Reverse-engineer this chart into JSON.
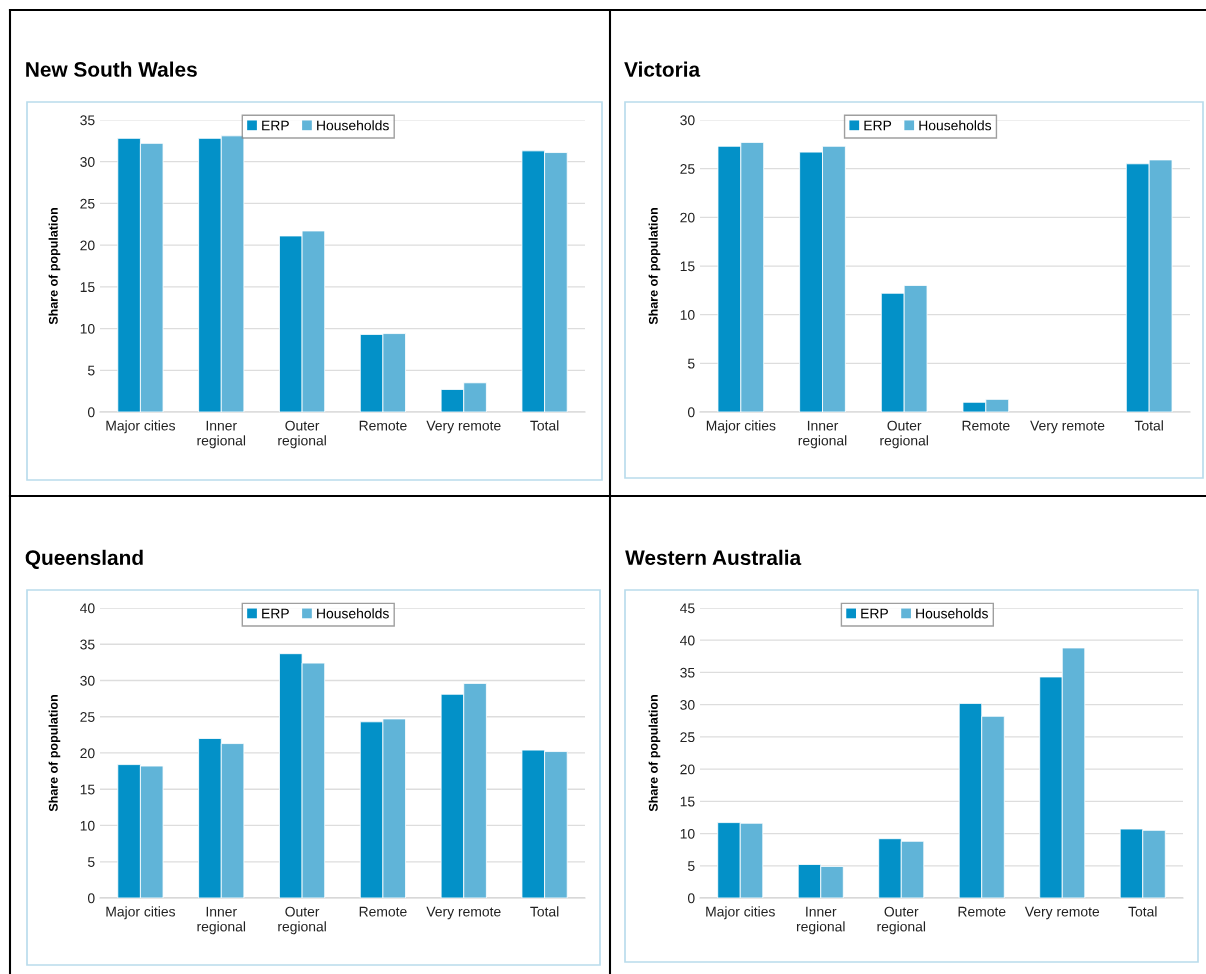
{
  "chart_data": [
    {
      "type": "bar",
      "title": "New South Wales",
      "ylabel": "Share of population",
      "categories": [
        "Major cities",
        "Inner\nregional",
        "Outer\nregional",
        "Remote",
        "Very remote",
        "Total"
      ],
      "series": [
        {
          "name": "ERP",
          "color": "#0391c8",
          "values": [
            32.8,
            32.8,
            21.1,
            9.3,
            2.7,
            31.3
          ]
        },
        {
          "name": "Households",
          "color": "#60b4d8",
          "values": [
            32.2,
            33.1,
            21.7,
            9.4,
            3.5,
            31.1
          ]
        }
      ],
      "ylim": [
        0,
        35
      ],
      "yticks": [
        0,
        5,
        10,
        15,
        20,
        25,
        30,
        35
      ],
      "grid": "y",
      "legend": "top"
    },
    {
      "type": "bar",
      "title": "Victoria",
      "ylabel": "Share of population",
      "categories": [
        "Major cities",
        "Inner\nregional",
        "Outer\nregional",
        "Remote",
        "Very remote",
        "Total"
      ],
      "series": [
        {
          "name": "ERP",
          "color": "#0391c8",
          "values": [
            27.3,
            26.7,
            12.2,
            1.0,
            null,
            25.5
          ]
        },
        {
          "name": "Households",
          "color": "#60b4d8",
          "values": [
            27.7,
            27.3,
            13.0,
            1.3,
            null,
            25.9
          ]
        }
      ],
      "ylim": [
        0,
        30
      ],
      "yticks": [
        0,
        5,
        10,
        15,
        20,
        25,
        30
      ],
      "grid": "y",
      "legend": "top"
    },
    {
      "type": "bar",
      "title": "Queensland",
      "ylabel": "Share of population",
      "categories": [
        "Major cities",
        "Inner\nregional",
        "Outer\nregional",
        "Remote",
        "Very remote",
        "Total"
      ],
      "series": [
        {
          "name": "ERP",
          "color": "#0391c8",
          "values": [
            18.4,
            22.0,
            33.7,
            24.3,
            28.1,
            20.4
          ]
        },
        {
          "name": "Households",
          "color": "#60b4d8",
          "values": [
            18.2,
            21.3,
            32.4,
            24.7,
            29.6,
            20.2
          ]
        }
      ],
      "ylim": [
        0,
        40
      ],
      "yticks": [
        0,
        5,
        10,
        15,
        20,
        25,
        30,
        35,
        40
      ],
      "grid": "y",
      "legend": "top"
    },
    {
      "type": "bar",
      "title": "Western Australia",
      "ylabel": "Share of population",
      "categories": [
        "Major cities",
        "Inner\nregional",
        "Outer\nregional",
        "Remote",
        "Very remote",
        "Total"
      ],
      "series": [
        {
          "name": "ERP",
          "color": "#0391c8",
          "values": [
            11.7,
            5.2,
            9.2,
            30.2,
            34.3,
            10.7
          ]
        },
        {
          "name": "Households",
          "color": "#60b4d8",
          "values": [
            11.6,
            4.9,
            8.8,
            28.2,
            38.8,
            10.5
          ]
        }
      ],
      "ylim": [
        0,
        45
      ],
      "yticks": [
        0,
        5,
        10,
        15,
        20,
        25,
        30,
        35,
        40,
        45
      ],
      "grid": "y",
      "legend": "top"
    }
  ]
}
